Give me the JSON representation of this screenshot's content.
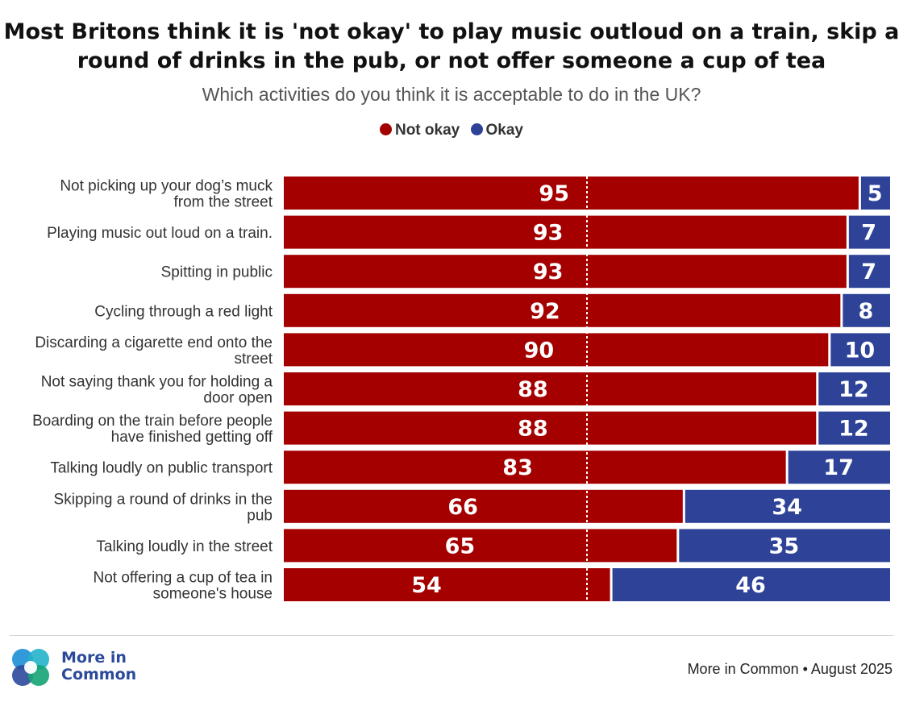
{
  "title_line1": "Most Britons think it is 'not okay' to play music outloud on a train, skip a",
  "title_line2": "round of drinks in the pub, or not offer someone a cup of tea",
  "subtitle": "Which activities do you think it is acceptable to do in the UK?",
  "legend": [
    {
      "label": "Not okay",
      "color": "#a50000"
    },
    {
      "label": "Okay",
      "color": "#2e4397"
    }
  ],
  "chart_data": {
    "type": "bar",
    "orientation": "horizontal",
    "stacked": true,
    "categories": [
      [
        "Not picking up your dog’s muck",
        "from the street"
      ],
      [
        "Playing music out loud on a train."
      ],
      [
        "Spitting in public"
      ],
      [
        "Cycling through a red light"
      ],
      [
        "Discarding a cigarette end onto the",
        "street"
      ],
      [
        "Not saying thank you for holding a",
        "door open"
      ],
      [
        "Boarding on the train before people",
        "have finished getting off"
      ],
      [
        "Talking loudly on public transport"
      ],
      [
        "Skipping a round of drinks in the",
        "pub"
      ],
      [
        "Talking loudly in the street"
      ],
      [
        "Not offering a cup of tea in",
        "someone's house"
      ]
    ],
    "series": [
      {
        "name": "Not okay",
        "color": "#a50000",
        "values": [
          95,
          93,
          93,
          92,
          90,
          88,
          88,
          83,
          66,
          65,
          54
        ]
      },
      {
        "name": "Okay",
        "color": "#2e4397",
        "values": [
          5,
          7,
          7,
          8,
          10,
          12,
          12,
          17,
          34,
          35,
          46
        ]
      }
    ],
    "xlim": [
      0,
      100
    ],
    "reference_line": 50,
    "legend_position": "top-center"
  },
  "footer": {
    "brand_line1": "More in",
    "brand_line2": "Common",
    "source": "More in Common • August 2025"
  }
}
